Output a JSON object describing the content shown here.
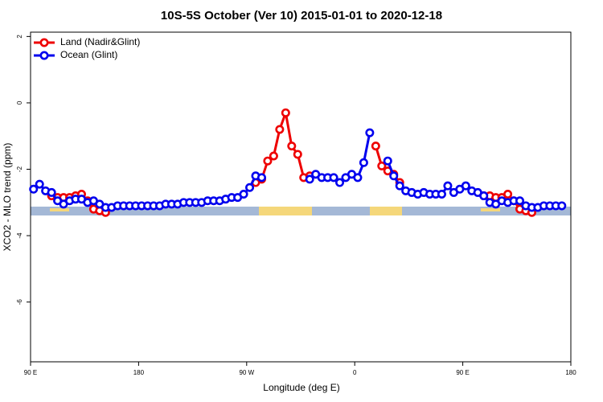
{
  "chart_data": {
    "type": "line",
    "title": "10S-5S October (Ver 10)   2015-01-01 to 2020-12-18",
    "x_label": "Longitude (deg E)",
    "y_label": "XCO2 - MLO trend (ppm)",
    "x": [
      92.5,
      97.5,
      102.5,
      107.5,
      112.5,
      117.5,
      122.5,
      127.5,
      132.5,
      137.5,
      142.5,
      147.5,
      152.5,
      157.5,
      162.5,
      167.5,
      172.5,
      177.5,
      182.5,
      187.5,
      192.5,
      197.5,
      202.5,
      207.5,
      212.5,
      217.5,
      222.5,
      227.5,
      232.5,
      237.5,
      242.5,
      247.5,
      252.5,
      257.5,
      262.5,
      267.5,
      272.5,
      277.5,
      282.5,
      287.5,
      292.5,
      297.5,
      302.5,
      307.5,
      312.5,
      317.5,
      322.5,
      327.5,
      332.5,
      337.5,
      342.5,
      347.5,
      352.5,
      357.5,
      362.5,
      367.5,
      372.5,
      377.5,
      382.5,
      387.5,
      392.5,
      397.5,
      402.5,
      407.5,
      412.5,
      417.5,
      422.5,
      427.5,
      432.5,
      437.5,
      442.5,
      447.5,
      452.5,
      457.5,
      462.5,
      467.5,
      472.5,
      477.5,
      482.5,
      487.5,
      492.5,
      497.5,
      502.5,
      507.5,
      512.5,
      517.5,
      522.5,
      527.5,
      532.5
    ],
    "series": [
      {
        "name": "Land (Nadir&Glint)",
        "color": "#ee0000",
        "values": [
          null,
          null,
          null,
          -2.8,
          -2.85,
          -2.85,
          -2.85,
          -2.8,
          -2.75,
          -2.95,
          -3.2,
          -3.25,
          -3.3,
          null,
          null,
          null,
          null,
          null,
          null,
          null,
          null,
          null,
          null,
          null,
          null,
          null,
          null,
          null,
          null,
          null,
          null,
          null,
          null,
          null,
          null,
          null,
          null,
          -2.4,
          -2.3,
          -1.75,
          -1.6,
          -0.8,
          -0.3,
          -1.3,
          -1.55,
          -2.25,
          -2.2,
          null,
          null,
          null,
          null,
          null,
          null,
          null,
          null,
          null,
          null,
          -1.3,
          -1.9,
          -2.05,
          -2.15,
          -2.4,
          null,
          null,
          null,
          null,
          null,
          null,
          null,
          null,
          null,
          null,
          null,
          null,
          null,
          -2.8,
          -2.8,
          -2.85,
          -2.85,
          -2.75,
          -2.95,
          -3.2,
          -3.25,
          -3.3,
          null,
          null,
          null,
          null,
          null
        ]
      },
      {
        "name": "Ocean (Glint)",
        "color": "#0000ee",
        "values": [
          -2.6,
          -2.45,
          -2.65,
          -2.7,
          -2.95,
          -3.05,
          -2.95,
          -2.9,
          -2.9,
          -3.0,
          -2.95,
          -3.05,
          -3.15,
          -3.15,
          -3.1,
          -3.1,
          -3.1,
          -3.1,
          -3.1,
          -3.1,
          -3.1,
          -3.1,
          -3.05,
          -3.05,
          -3.05,
          -3.0,
          -3.0,
          -3.0,
          -3.0,
          -2.95,
          -2.95,
          -2.95,
          -2.9,
          -2.85,
          -2.85,
          -2.75,
          -2.55,
          -2.2,
          -2.25,
          null,
          null,
          null,
          null,
          null,
          null,
          null,
          -2.3,
          -2.15,
          -2.25,
          -2.25,
          -2.25,
          -2.4,
          -2.25,
          -2.15,
          -2.25,
          -1.8,
          -0.9,
          null,
          null,
          -1.75,
          -2.2,
          -2.5,
          -2.65,
          -2.7,
          -2.75,
          -2.7,
          -2.75,
          -2.75,
          -2.75,
          -2.5,
          -2.7,
          -2.6,
          -2.5,
          -2.65,
          -2.7,
          -2.8,
          -3.0,
          -3.05,
          -2.95,
          -3.0,
          -2.95,
          -2.95,
          -3.1,
          -3.15,
          -3.15,
          -3.1,
          -3.1,
          -3.1,
          -3.1
        ]
      }
    ],
    "xlim": [
      90,
      540
    ],
    "xticks": [
      {
        "value": 90,
        "label": "90 E"
      },
      {
        "value": 180,
        "label": "180"
      },
      {
        "value": 270,
        "label": "90 W"
      },
      {
        "value": 360,
        "label": "0"
      },
      {
        "value": 450,
        "label": "90 E"
      },
      {
        "value": 540,
        "label": "180"
      }
    ],
    "ylim": [
      -7.8,
      2.13
    ],
    "yticks": [
      2,
      0,
      -2,
      -4,
      -6
    ],
    "legend": "top-left"
  }
}
